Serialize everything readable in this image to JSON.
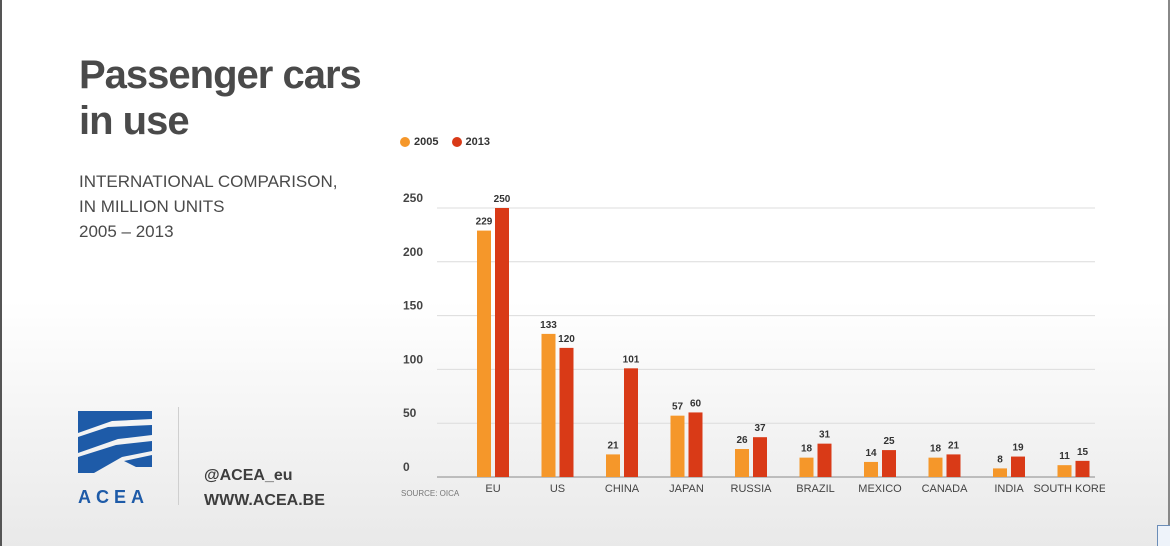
{
  "title_lines": [
    "Passenger cars",
    "in use"
  ],
  "subtitle_lines": [
    "INTERNATIONAL COMPARISON,",
    "IN MILLION UNITS",
    "2005 – 2013"
  ],
  "logo_text": "ACEA",
  "social": {
    "twitter": "@ACEA_eu",
    "website": "WWW.ACEA.BE"
  },
  "colors": {
    "2005": "#f5972a",
    "2013": "#d93a17",
    "logo": "#1e5ba8"
  },
  "chart_data": {
    "type": "bar",
    "categories": [
      "EU",
      "US",
      "CHINA",
      "JAPAN",
      "RUSSIA",
      "BRAZIL",
      "MEXICO",
      "CANADA",
      "INDIA",
      "SOUTH KOREA"
    ],
    "series": [
      {
        "name": "2005",
        "values": [
          229,
          133,
          21,
          57,
          26,
          18,
          14,
          18,
          8,
          11
        ]
      },
      {
        "name": "2013",
        "values": [
          250,
          120,
          101,
          60,
          37,
          31,
          25,
          21,
          19,
          15
        ]
      }
    ],
    "yticks": [
      "0",
      "50",
      "100",
      "150",
      "200",
      "250"
    ],
    "ylim": [
      0,
      250
    ],
    "source": "SOURCE: OICA",
    "legend_position": "top-left",
    "grid": true
  }
}
